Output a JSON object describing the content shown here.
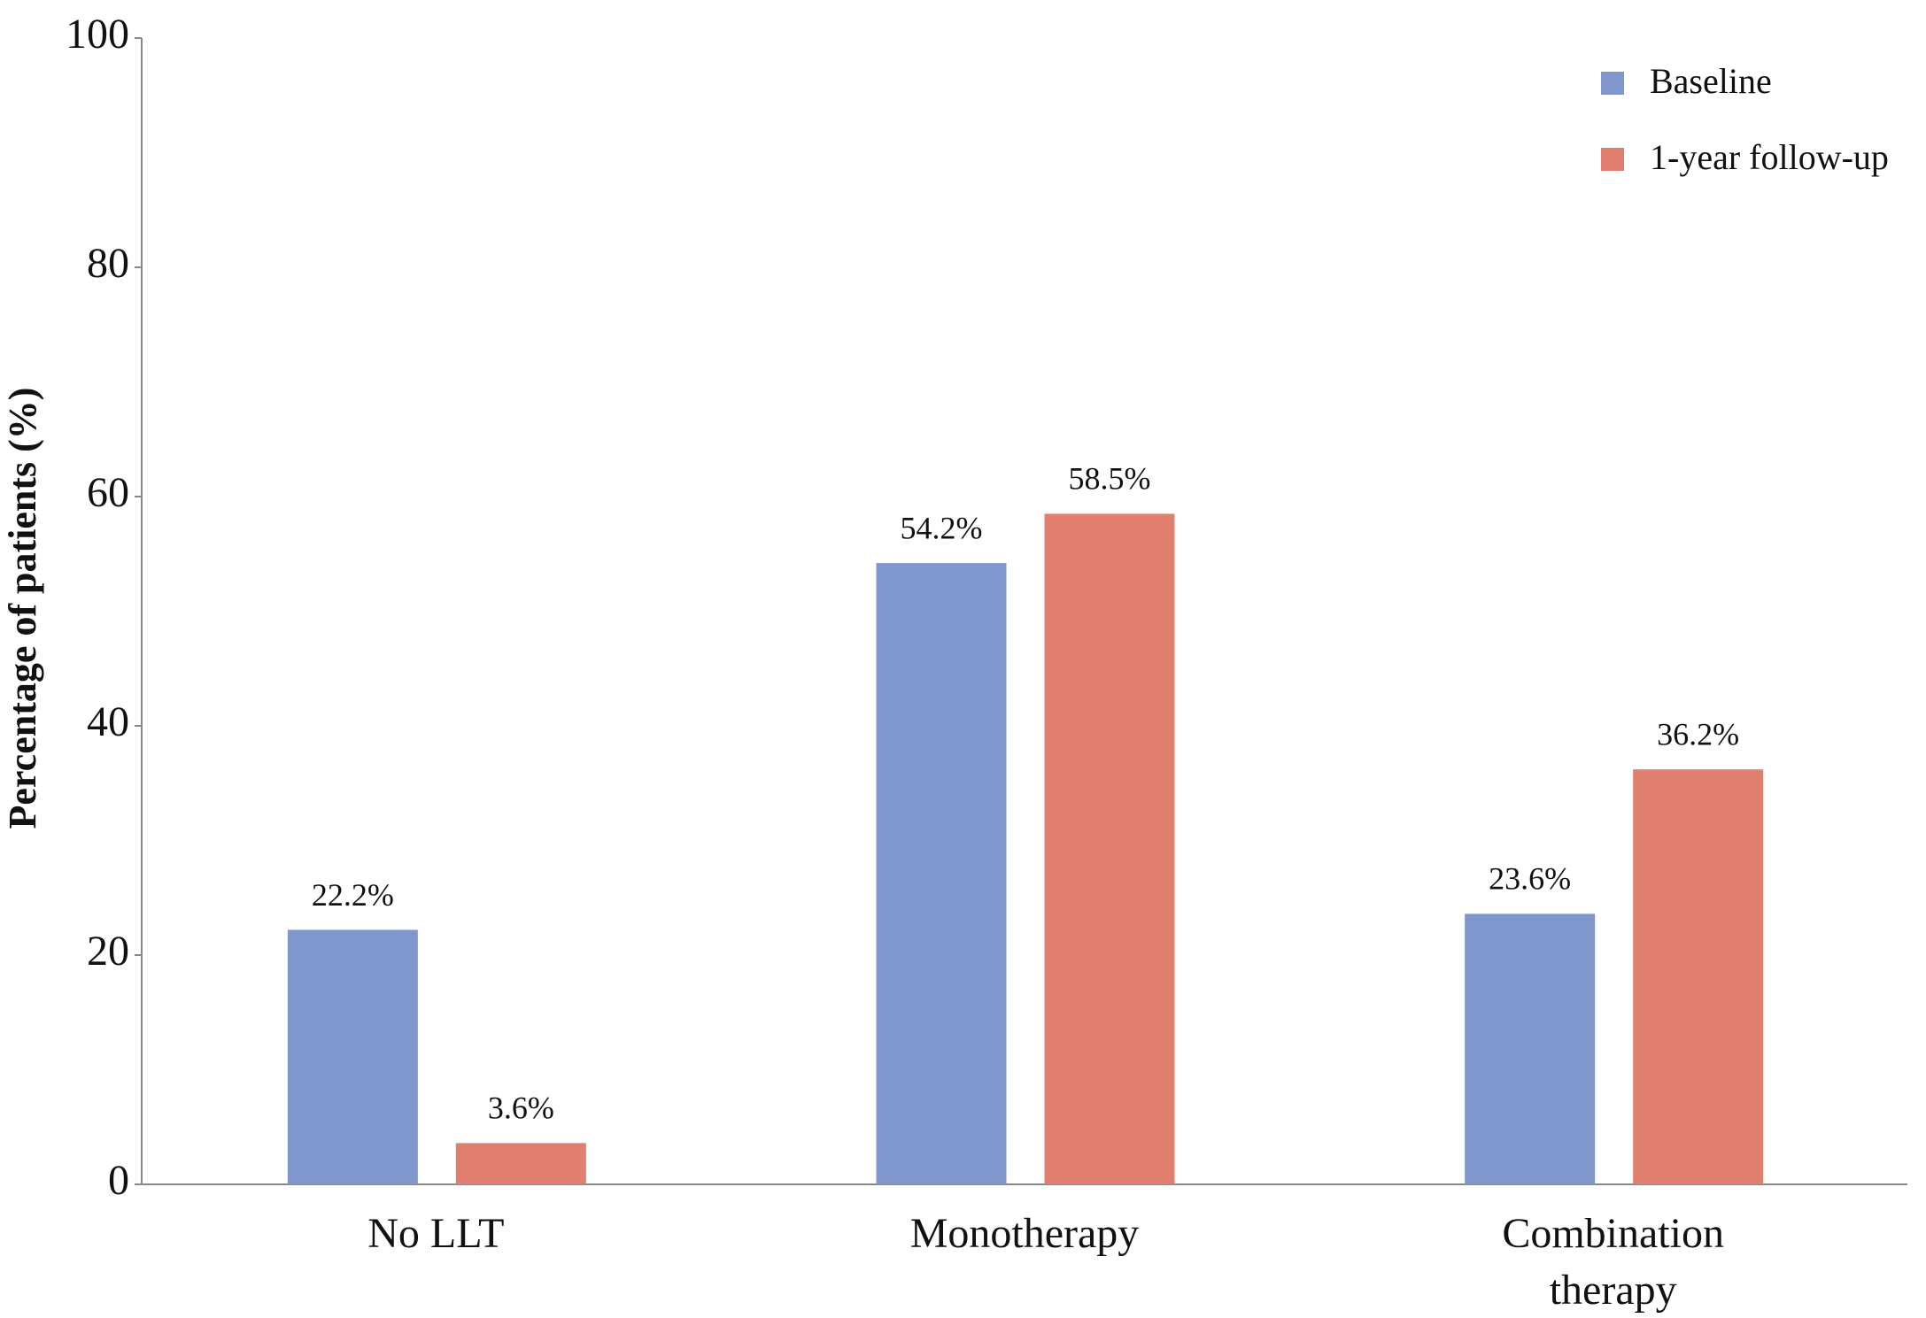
{
  "chart_data": {
    "type": "bar",
    "y_label": "Percentage of patients (%)",
    "categories": [
      "No LLT",
      "Monotherapy",
      "Combination therapy"
    ],
    "series": [
      {
        "name": "Baseline",
        "color": "#7f97cc",
        "values": [
          22.2,
          54.2,
          23.6
        ],
        "value_labels": [
          "22.2%",
          "54.2%",
          "23.6%"
        ]
      },
      {
        "name": "1-year follow-up",
        "color": "#e07f6e",
        "values": [
          3.6,
          58.5,
          36.2
        ],
        "value_labels": [
          "3.6%",
          "58.5%",
          "36.2%"
        ]
      }
    ],
    "ylim": [
      0,
      100
    ],
    "yticks": [
      0,
      20,
      40,
      60,
      80,
      100
    ],
    "grid": false,
    "legend": "top-right"
  }
}
